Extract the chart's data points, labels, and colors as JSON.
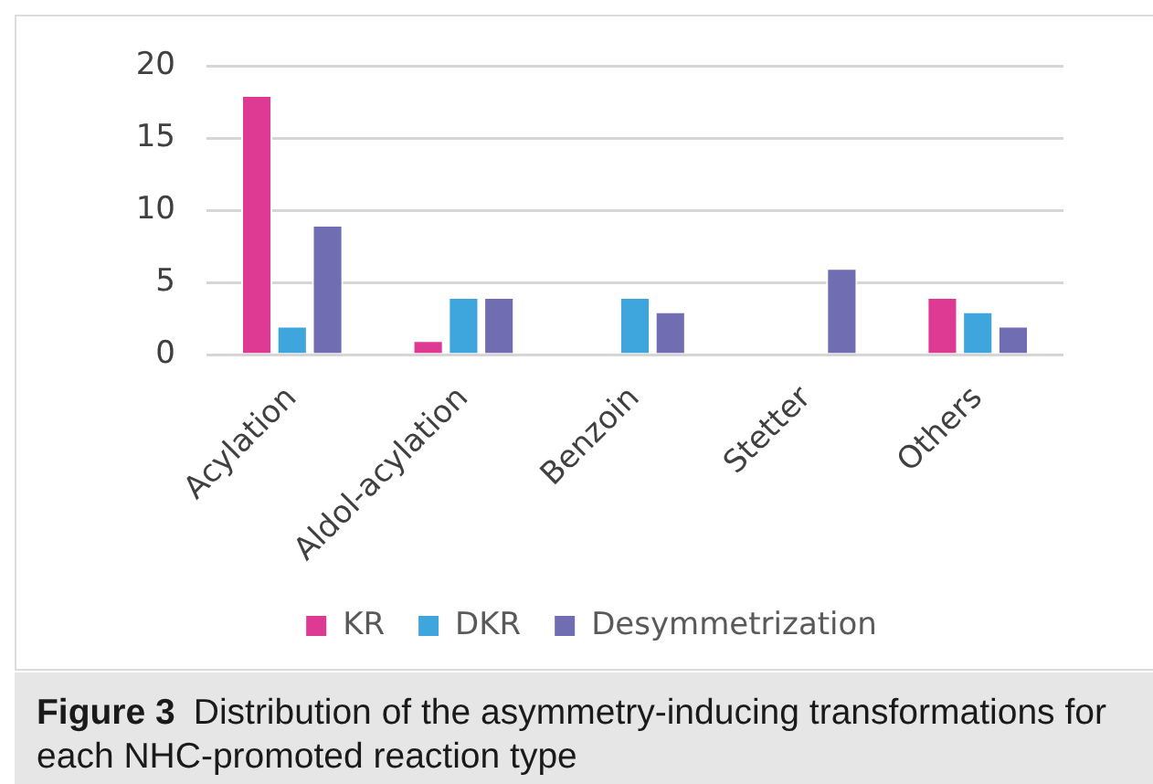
{
  "chart_data": {
    "type": "bar",
    "categories": [
      "Acylation",
      "Aldol-acylation",
      "Benzoin",
      "Stetter",
      "Others"
    ],
    "series": [
      {
        "name": "KR",
        "color": "#df3a93",
        "values": [
          18,
          1,
          null,
          null,
          4
        ]
      },
      {
        "name": "DKR",
        "color": "#3fa6dd",
        "values": [
          2,
          4,
          4,
          null,
          3
        ]
      },
      {
        "name": "Desymmetrization",
        "color": "#706db3",
        "values": [
          9,
          4,
          3,
          6,
          2
        ]
      }
    ],
    "ylim": [
      0,
      20
    ],
    "yticks": [
      0,
      5,
      10,
      15,
      20
    ],
    "grid": "y",
    "legend": "bottom",
    "annotations": [
      "Figure 3 Distribution of the asymmetry-inducing transformations for each NHC-promoted reaction type"
    ]
  }
}
